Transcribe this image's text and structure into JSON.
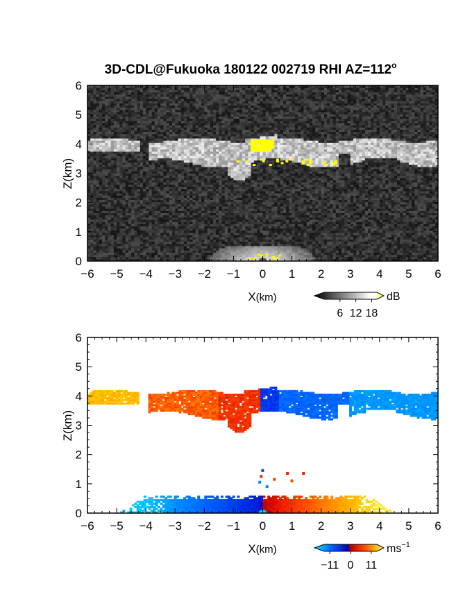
{
  "title": "3D-CDL@Fukuoka 180122 002719 RHI AZ=112",
  "title_superscript": "o",
  "chart_data": [
    {
      "type": "heatmap",
      "panel": "reflectivity",
      "xlabel_main": "X",
      "xlabel_unit": "(km)",
      "ylabel": "Z(km)",
      "xlim": [
        -6,
        6
      ],
      "ylim": [
        0,
        6
      ],
      "xticks": [
        "-6",
        "-5",
        "-4",
        "-3",
        "-2",
        "-1",
        "0",
        "1",
        "2",
        "3",
        "4",
        "5",
        "6"
      ],
      "yticks": [
        "0",
        "1",
        "2",
        "3",
        "4",
        "5",
        "6"
      ],
      "colorbar": {
        "unit": "dB",
        "ticks": [
          "6",
          "12",
          "18"
        ],
        "range": [
          0,
          20
        ],
        "colors": [
          "#000000",
          "#ffffff",
          "#ffff00"
        ]
      },
      "features": [
        {
          "label": "cloud layer",
          "x_range": [
            -6,
            6
          ],
          "z_range": [
            3.3,
            4.3
          ]
        },
        {
          "label": "strong echo (yellow)",
          "x_range": [
            -0.9,
            2.5
          ],
          "z_range": [
            3.2,
            4.2
          ]
        },
        {
          "label": "near-ground clutter",
          "x_range": [
            -1.5,
            1.5
          ],
          "z_range": [
            0,
            0.5
          ]
        }
      ]
    },
    {
      "type": "heatmap",
      "panel": "doppler velocity",
      "xlabel_main": "X",
      "xlabel_unit": "(km)",
      "ylabel": "Z(km)",
      "xlim": [
        -6,
        6
      ],
      "ylim": [
        0,
        6
      ],
      "xticks": [
        "-6",
        "-5",
        "-4",
        "-3",
        "-2",
        "-1",
        "0",
        "1",
        "2",
        "3",
        "4",
        "5",
        "6"
      ],
      "yticks": [
        "0",
        "1",
        "2",
        "3",
        "4",
        "5",
        "6"
      ],
      "colorbar": {
        "unit": "ms",
        "unit_exponent": "−1",
        "ticks": [
          "−11",
          "0",
          "11"
        ],
        "range": [
          -14,
          14
        ],
        "colors": [
          "#00e5ff",
          "#0040ff",
          "#0000c0",
          "#c00000",
          "#ff3000",
          "#ff9000",
          "#ffd000",
          "#ffff60"
        ]
      },
      "features": [
        {
          "label": "cloud layer, positive velocity",
          "x_range": [
            -6,
            0
          ],
          "z_range": [
            3.0,
            4.3
          ],
          "velocity": 7
        },
        {
          "label": "cloud layer, negative velocity",
          "x_range": [
            0,
            6
          ],
          "z_range": [
            3.0,
            4.2
          ],
          "velocity": -8
        },
        {
          "label": "boundary layer",
          "x_range": [
            -5,
            4.6
          ],
          "z_range": [
            0,
            0.7
          ]
        }
      ]
    }
  ]
}
